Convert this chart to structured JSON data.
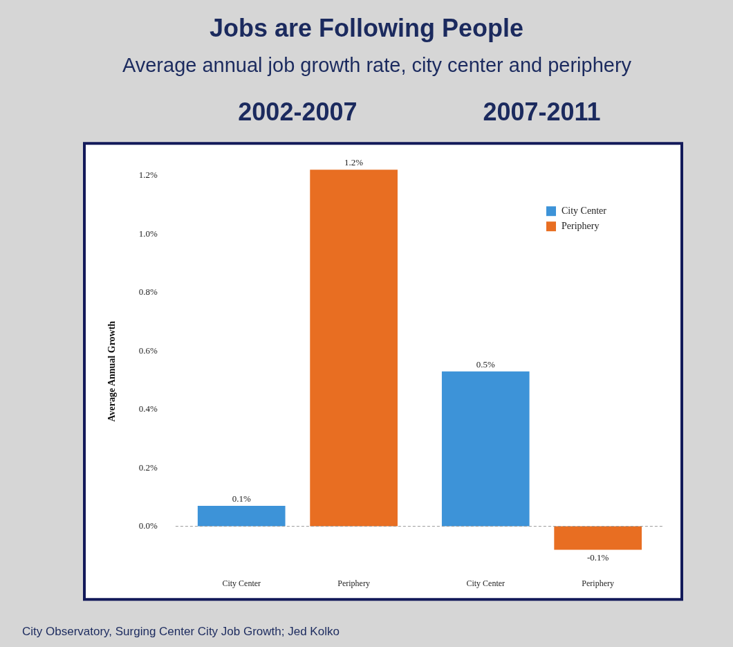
{
  "chart_data": {
    "type": "bar",
    "title": "Jobs are Following People",
    "subtitle": "Average annual job growth rate, city center and periphery",
    "ylabel": "Average Annual Growth",
    "categories": [
      "2002-2007",
      "2007-2011"
    ],
    "series": [
      {
        "name": "City Center",
        "color": "#3d93d8",
        "values": [
          0.07,
          0.53
        ],
        "value_labels": [
          "0.1%",
          "0.5%"
        ]
      },
      {
        "name": "Periphery",
        "color": "#e86e22",
        "values": [
          1.22,
          -0.08
        ],
        "value_labels": [
          "1.2%",
          "-0.1%"
        ]
      }
    ],
    "ylim": [
      -0.25,
      1.31
    ],
    "yticks": [
      {
        "value": 0,
        "label": "0.0%"
      },
      {
        "value": 0.2,
        "label": "0.2%"
      },
      {
        "value": 0.4,
        "label": "0.4%"
      },
      {
        "value": 0.6,
        "label": "0.6%"
      },
      {
        "value": 0.8,
        "label": "0.8%"
      },
      {
        "value": 1,
        "label": "1.0%"
      },
      {
        "value": 1.2,
        "label": "1.2%"
      }
    ],
    "ref_lines": [
      {
        "axis": "y",
        "value": 0,
        "color": "#999999",
        "line_style": "dashed"
      }
    ],
    "grid": false,
    "legend": "top right",
    "annotations": [
      "City Observatory, Surging Center City Job Growth; Jed Kolko"
    ]
  }
}
